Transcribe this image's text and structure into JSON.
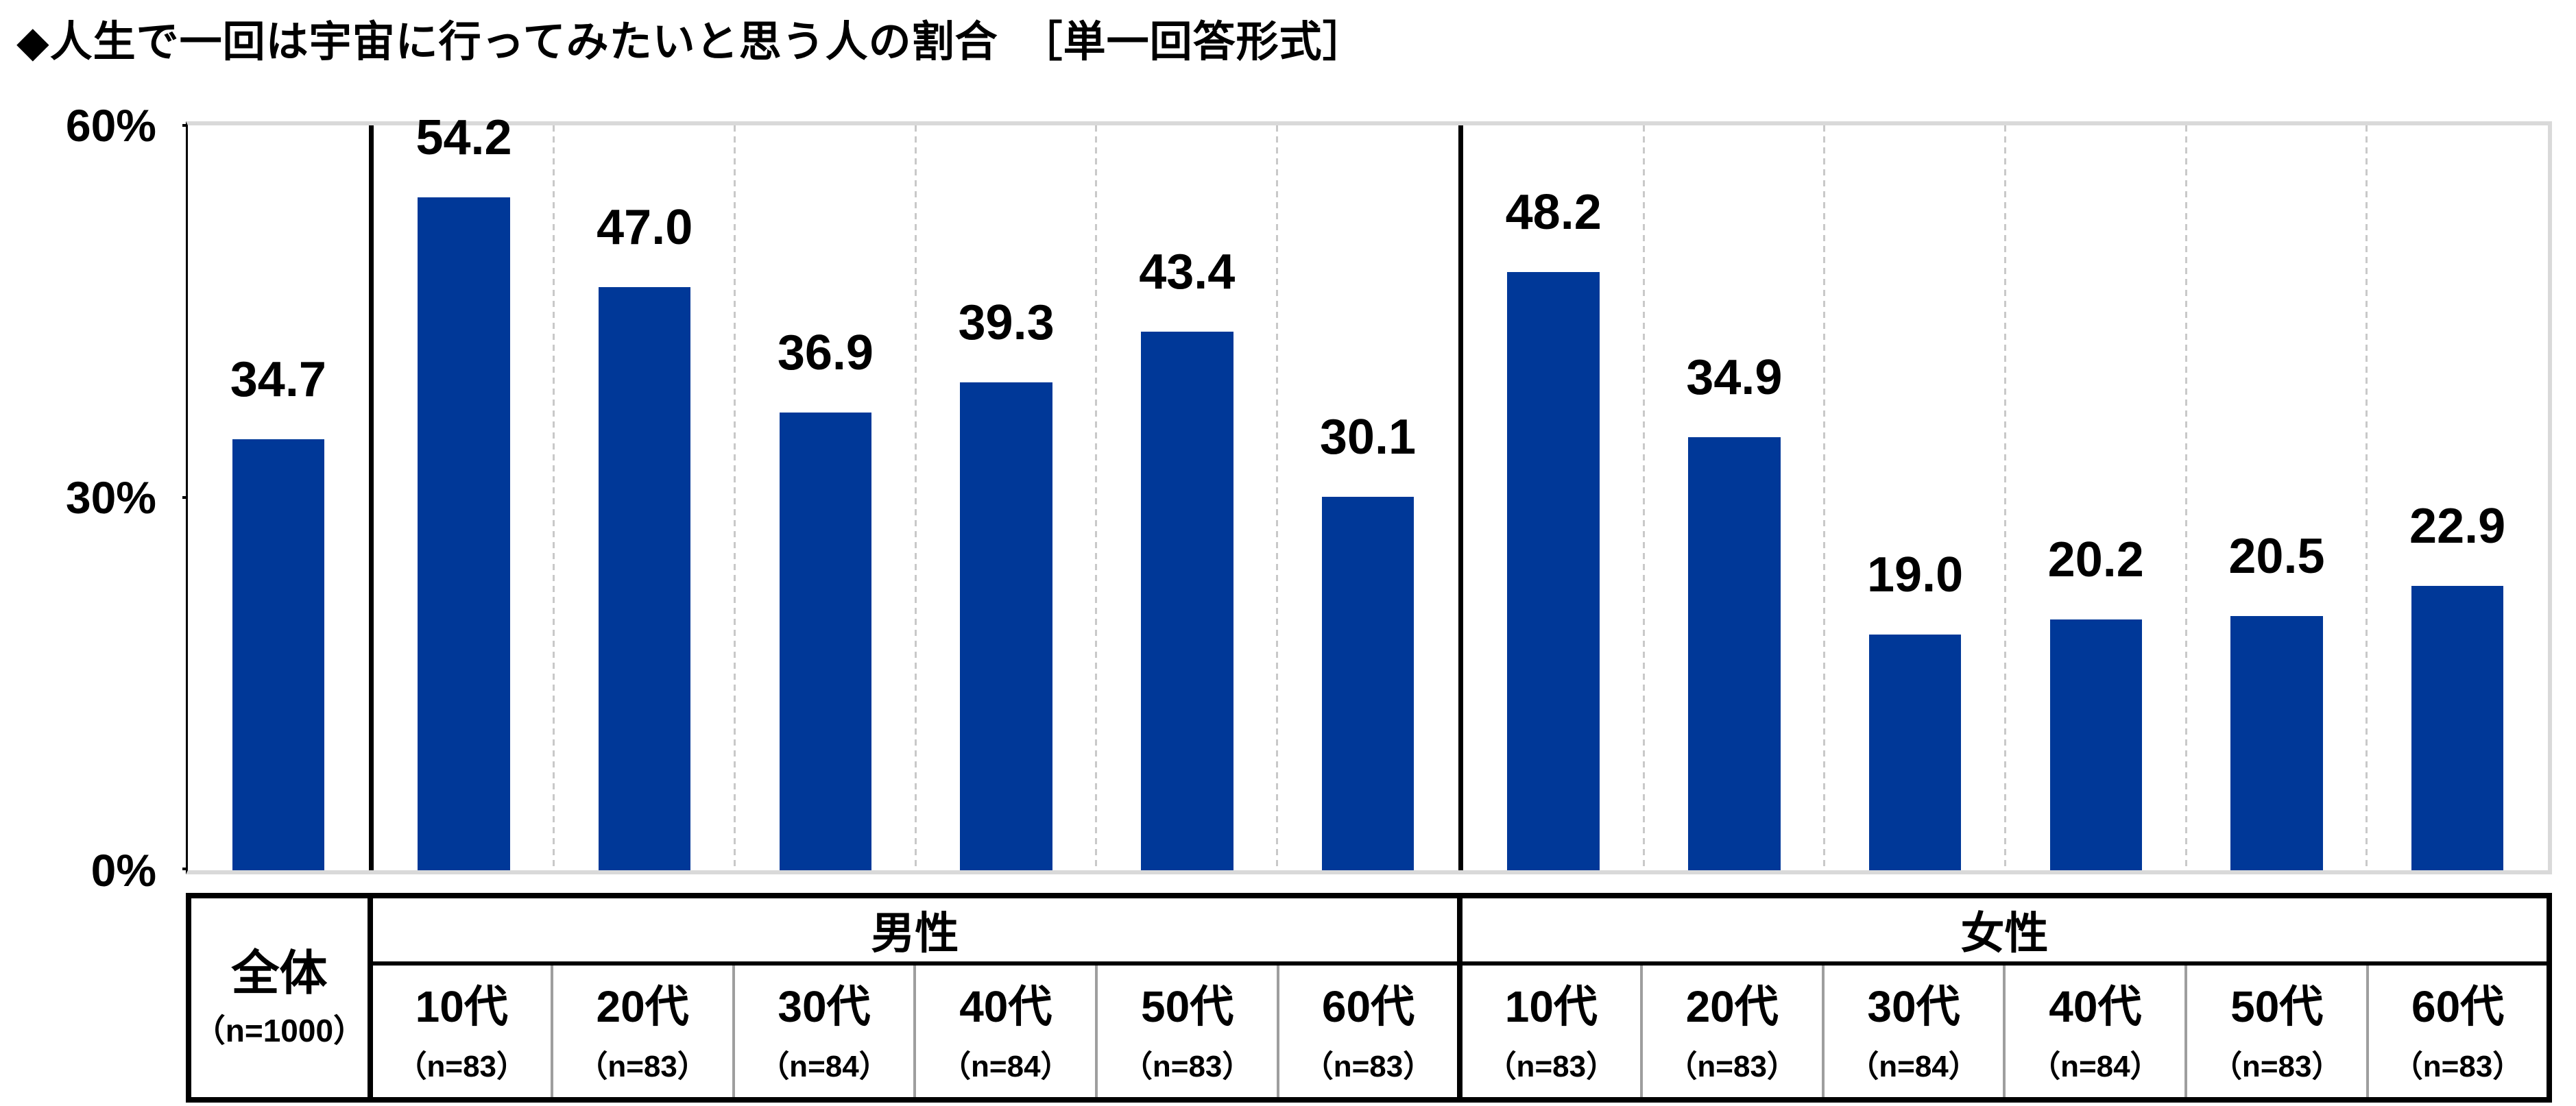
{
  "title": "◆人生で一回は宇宙に行ってみたいと思う人の割合　［単一回答形式］",
  "y_axis": {
    "ticks": [
      "60%",
      "30%",
      "0%"
    ],
    "min": 0,
    "max": 60,
    "unit": "%"
  },
  "colors": {
    "bar": "#003898",
    "plot_border_gray": "#d9d9d9",
    "column_dash": "#c9c9c9",
    "table_thin_border": "#9e9e9e",
    "text": "#000000"
  },
  "chart_data": {
    "type": "bar",
    "title": "人生で一回は宇宙に行ってみたいと思う人の割合［単一回答形式］",
    "xlabel": "",
    "ylabel": "%",
    "ylim": [
      0,
      60
    ],
    "grid": "vertical dashed separators between age columns; solid black dividers between groups",
    "legend_position": "none",
    "groups": [
      {
        "header": "全体",
        "cols": [
          {
            "age": "全体",
            "n": "（n=1000）",
            "value": 34.7,
            "label": "34.7"
          }
        ]
      },
      {
        "header": "男性",
        "cols": [
          {
            "age": "10代",
            "n": "（n=83）",
            "value": 54.2,
            "label": "54.2"
          },
          {
            "age": "20代",
            "n": "（n=83）",
            "value": 47.0,
            "label": "47.0"
          },
          {
            "age": "30代",
            "n": "（n=84）",
            "value": 36.9,
            "label": "36.9"
          },
          {
            "age": "40代",
            "n": "（n=84）",
            "value": 39.3,
            "label": "39.3"
          },
          {
            "age": "50代",
            "n": "（n=83）",
            "value": 43.4,
            "label": "43.4"
          },
          {
            "age": "60代",
            "n": "（n=83）",
            "value": 30.1,
            "label": "30.1"
          }
        ]
      },
      {
        "header": "女性",
        "cols": [
          {
            "age": "10代",
            "n": "（n=83）",
            "value": 48.2,
            "label": "48.2"
          },
          {
            "age": "20代",
            "n": "（n=83）",
            "value": 34.9,
            "label": "34.9"
          },
          {
            "age": "30代",
            "n": "（n=84）",
            "value": 19.0,
            "label": "19.0"
          },
          {
            "age": "40代",
            "n": "（n=84）",
            "value": 20.2,
            "label": "20.2"
          },
          {
            "age": "50代",
            "n": "（n=83）",
            "value": 20.5,
            "label": "20.5"
          },
          {
            "age": "60代",
            "n": "（n=83）",
            "value": 22.9,
            "label": "22.9"
          }
        ]
      }
    ]
  }
}
